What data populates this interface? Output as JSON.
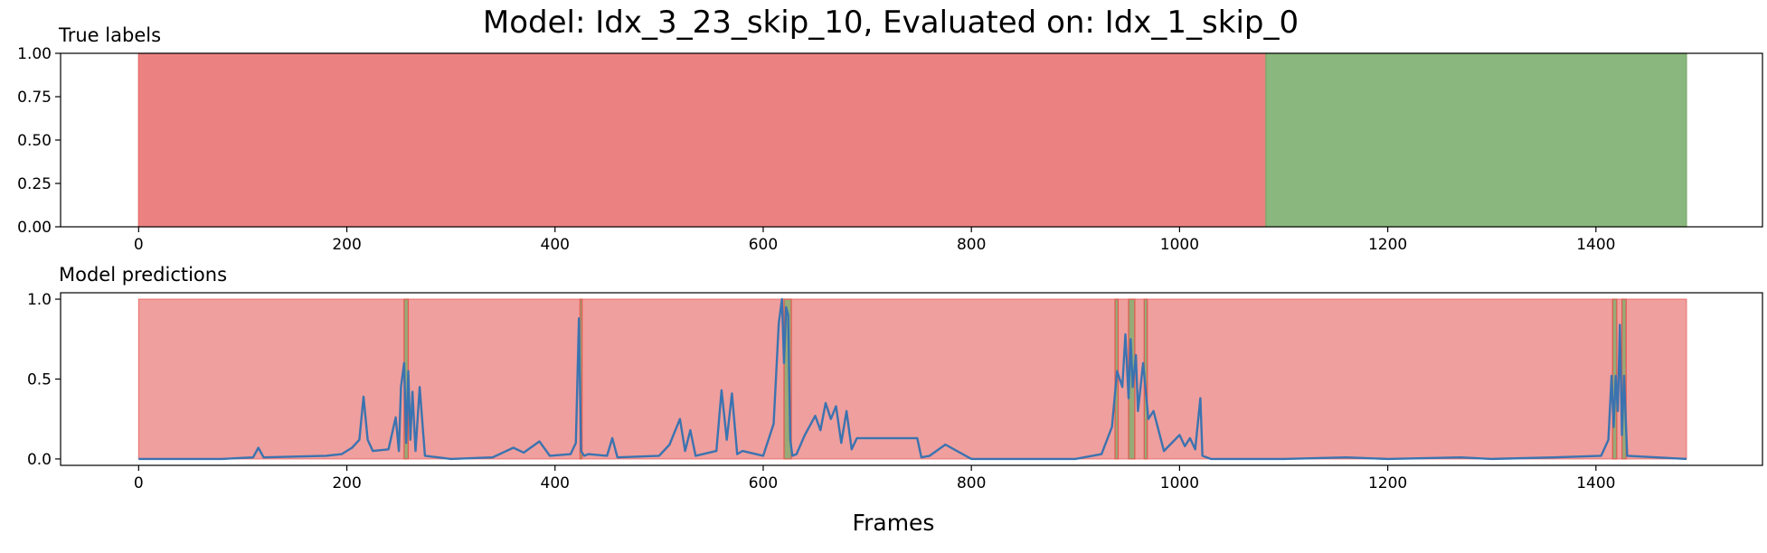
{
  "figure_title": "Model: Idx_3_23_skip_10, Evaluated on: Idx_1_skip_0",
  "xlabel": "Frames",
  "colors": {
    "negative": "#e8716f",
    "positive": "#7aad6b",
    "prediction_line": "#3b73b0",
    "axes": "#000000"
  },
  "chart_data": [
    {
      "type": "area",
      "title": "True labels",
      "xlim": [
        -75,
        1560
      ],
      "ylim": [
        0,
        1
      ],
      "xticks": [
        0,
        200,
        400,
        600,
        800,
        1000,
        1200,
        1400
      ],
      "yticks": [
        0.0,
        0.25,
        0.5,
        0.75,
        1.0
      ],
      "ytick_labels": [
        "0.00",
        "0.25",
        "0.50",
        "0.75",
        "1.00"
      ],
      "segments": [
        {
          "label": "negative",
          "start": 0,
          "end": 1083
        },
        {
          "label": "positive",
          "start": 1083,
          "end": 1487
        }
      ],
      "grid": false
    },
    {
      "type": "line",
      "title": "Model predictions",
      "xlim": [
        -75,
        1560
      ],
      "ylim": [
        -0.04,
        1.04
      ],
      "xticks": [
        0,
        200,
        400,
        600,
        800,
        1000,
        1200,
        1400
      ],
      "yticks": [
        0.0,
        0.5,
        1.0
      ],
      "ytick_labels": [
        "0.0",
        "0.5",
        "1.0"
      ],
      "background": {
        "label": "negative",
        "start": 0,
        "end": 1487
      },
      "positive_spans": [
        [
          255,
          259
        ],
        [
          424,
          426
        ],
        [
          620,
          627
        ],
        [
          938,
          941
        ],
        [
          951,
          957
        ],
        [
          966,
          969
        ],
        [
          1416,
          1420
        ],
        [
          1425,
          1429
        ]
      ],
      "series": [
        {
          "x": [
            0,
            80,
            110,
            115,
            120,
            180,
            195,
            205,
            212,
            216,
            220,
            225,
            240,
            247,
            250,
            252,
            255,
            257,
            259,
            261,
            263,
            266,
            270,
            275,
            300,
            340,
            360,
            370,
            385,
            395,
            415,
            420,
            423,
            425,
            428,
            432,
            450,
            455,
            460,
            500,
            510,
            520,
            525,
            530,
            535,
            555,
            560,
            565,
            570,
            575,
            580,
            600,
            610,
            615,
            618,
            620,
            622,
            624,
            626,
            628,
            632,
            640,
            650,
            655,
            660,
            665,
            670,
            675,
            680,
            685,
            690,
            748,
            752,
            760,
            775,
            800,
            900,
            925,
            935,
            940,
            945,
            948,
            951,
            953,
            955,
            958,
            960,
            965,
            970,
            975,
            985,
            1000,
            1005,
            1010,
            1015,
            1020,
            1022,
            1030,
            1100,
            1160,
            1200,
            1270,
            1300,
            1360,
            1405,
            1412,
            1415,
            1417,
            1419,
            1421,
            1423,
            1425,
            1427,
            1430,
            1487
          ],
          "y": [
            0.0,
            0.0,
            0.01,
            0.07,
            0.01,
            0.02,
            0.03,
            0.07,
            0.12,
            0.39,
            0.12,
            0.05,
            0.06,
            0.26,
            0.05,
            0.45,
            0.6,
            0.1,
            0.55,
            0.12,
            0.42,
            0.05,
            0.45,
            0.02,
            0.0,
            0.01,
            0.07,
            0.04,
            0.11,
            0.02,
            0.03,
            0.1,
            0.88,
            0.05,
            0.02,
            0.03,
            0.02,
            0.13,
            0.01,
            0.02,
            0.09,
            0.25,
            0.05,
            0.18,
            0.02,
            0.05,
            0.43,
            0.12,
            0.41,
            0.03,
            0.05,
            0.02,
            0.22,
            0.85,
            1.0,
            0.6,
            0.95,
            0.9,
            0.12,
            0.02,
            0.03,
            0.15,
            0.27,
            0.18,
            0.35,
            0.25,
            0.33,
            0.1,
            0.3,
            0.06,
            0.13,
            0.13,
            0.01,
            0.02,
            0.09,
            0.0,
            0.0,
            0.03,
            0.2,
            0.55,
            0.45,
            0.78,
            0.38,
            0.75,
            0.45,
            0.65,
            0.3,
            0.6,
            0.25,
            0.3,
            0.05,
            0.15,
            0.08,
            0.13,
            0.06,
            0.38,
            0.02,
            0.0,
            0.0,
            0.01,
            0.0,
            0.01,
            0.0,
            0.01,
            0.02,
            0.12,
            0.52,
            0.2,
            0.52,
            0.3,
            0.84,
            0.15,
            0.52,
            0.02,
            0.0
          ]
        }
      ],
      "grid": false
    }
  ]
}
